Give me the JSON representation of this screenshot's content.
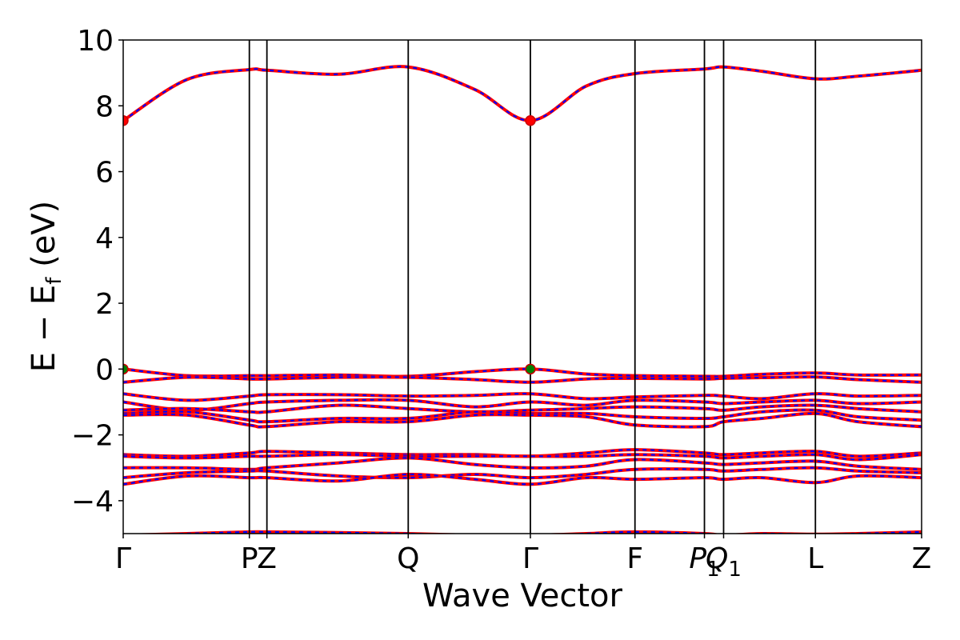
{
  "chart_data": {
    "type": "line",
    "xlabel": "Wave Vector",
    "ylabel": "E − E",
    "ylabel_sub": "f",
    "ylabel_unit": "(eV)",
    "ylim": [
      -5,
      10
    ],
    "yticks": [
      -4,
      -2,
      0,
      2,
      4,
      6,
      8,
      10
    ],
    "ytick_labels": [
      "−4",
      "−2",
      "0",
      "2",
      "4",
      "6",
      "8",
      "10"
    ],
    "xlim": [
      0,
      100
    ],
    "high_symmetry_points": [
      {
        "x": 0,
        "label": "Γ",
        "sub": ""
      },
      {
        "x": 15.8,
        "label": "P",
        "sub": ""
      },
      {
        "x": 18.0,
        "label": "Z",
        "sub": ""
      },
      {
        "x": 35.7,
        "label": "Q",
        "sub": ""
      },
      {
        "x": 51.0,
        "label": "Γ",
        "sub": ""
      },
      {
        "x": 64.1,
        "label": "F",
        "sub": ""
      },
      {
        "x": 72.8,
        "label": "P",
        "sub": "1"
      },
      {
        "x": 75.2,
        "label": "Q",
        "sub": "1"
      },
      {
        "x": 86.7,
        "label": "L",
        "sub": ""
      },
      {
        "x": 100,
        "label": "Z",
        "sub": ""
      }
    ],
    "style": {
      "band_color": "#ff0000",
      "overlay_color": "#0000ff",
      "marker_cbm": "#ff0000",
      "marker_vbm": "#008000",
      "vline_color": "#000000"
    },
    "markers": [
      {
        "x": 0,
        "y": 7.55,
        "kind": "cbm"
      },
      {
        "x": 51.0,
        "y": 7.55,
        "kind": "cbm"
      },
      {
        "x": 0,
        "y": 0.0,
        "kind": "vbm"
      },
      {
        "x": 51.0,
        "y": 0.0,
        "kind": "vbm"
      }
    ],
    "series": [
      {
        "x": [
          0,
          8,
          15.8,
          18,
          27,
          35.7,
          44,
          51,
          58,
          64.1,
          72.8,
          75.2,
          80,
          86.7,
          92,
          100
        ],
        "y": [
          7.55,
          8.8,
          9.1,
          9.08,
          8.96,
          9.18,
          8.5,
          7.55,
          8.6,
          8.98,
          9.12,
          9.18,
          9.05,
          8.82,
          8.9,
          9.08
        ]
      },
      {
        "x": [
          0,
          8,
          15.8,
          18,
          27,
          35.7,
          44,
          51,
          58,
          64.1,
          72.8,
          75.2,
          80,
          86.7,
          92,
          100
        ],
        "y": [
          0.0,
          -0.2,
          -0.2,
          -0.2,
          -0.18,
          -0.22,
          -0.08,
          0.0,
          -0.15,
          -0.2,
          -0.22,
          -0.22,
          -0.16,
          -0.12,
          -0.18,
          -0.18
        ]
      },
      {
        "x": [
          0,
          8,
          15.8,
          18,
          27,
          35.7,
          44,
          51,
          58,
          64.1,
          72.8,
          75.2,
          80,
          86.7,
          92,
          100
        ],
        "y": [
          -0.4,
          -0.25,
          -0.3,
          -0.3,
          -0.25,
          -0.25,
          -0.32,
          -0.4,
          -0.3,
          -0.28,
          -0.3,
          -0.28,
          -0.26,
          -0.24,
          -0.32,
          -0.4
        ]
      },
      {
        "x": [
          0,
          8,
          15.8,
          18,
          27,
          35.7,
          44,
          51,
          58,
          64.1,
          72.8,
          75.2,
          80,
          86.7,
          92,
          100
        ],
        "y": [
          -0.75,
          -0.95,
          -0.82,
          -0.78,
          -0.78,
          -0.82,
          -0.8,
          -0.75,
          -0.9,
          -0.85,
          -0.8,
          -0.82,
          -0.9,
          -0.75,
          -0.82,
          -0.8
        ]
      },
      {
        "x": [
          0,
          8,
          15.8,
          18,
          27,
          35.7,
          44,
          51,
          58,
          64.1,
          72.8,
          75.2,
          80,
          86.7,
          92,
          100
        ],
        "y": [
          -1.0,
          -1.25,
          -1.05,
          -1.0,
          -0.95,
          -0.95,
          -1.15,
          -1.0,
          -1.1,
          -0.95,
          -1.0,
          -1.05,
          -1.0,
          -0.95,
          -1.05,
          -1.0
        ]
      },
      {
        "x": [
          0,
          8,
          15.8,
          18,
          27,
          35.7,
          44,
          51,
          58,
          64.1,
          72.8,
          75.2,
          80,
          86.7,
          92,
          100
        ],
        "y": [
          -1.25,
          -1.2,
          -1.3,
          -1.3,
          -1.1,
          -1.2,
          -1.3,
          -1.25,
          -1.2,
          -1.15,
          -1.2,
          -1.25,
          -1.15,
          -1.1,
          -1.2,
          -1.3
        ]
      },
      {
        "x": [
          0,
          8,
          15.8,
          18,
          27,
          35.7,
          44,
          51,
          58,
          64.1,
          72.8,
          75.2,
          80,
          86.7,
          92,
          100
        ],
        "y": [
          -1.35,
          -1.3,
          -1.55,
          -1.6,
          -1.5,
          -1.5,
          -1.3,
          -1.35,
          -1.35,
          -1.45,
          -1.5,
          -1.45,
          -1.3,
          -1.25,
          -1.45,
          -1.55
        ]
      },
      {
        "x": [
          0,
          8,
          15.8,
          18,
          27,
          35.7,
          44,
          51,
          58,
          64.1,
          72.8,
          75.2,
          80,
          86.7,
          92,
          100
        ],
        "y": [
          -1.4,
          -1.4,
          -1.7,
          -1.75,
          -1.6,
          -1.6,
          -1.4,
          -1.4,
          -1.45,
          -1.7,
          -1.75,
          -1.6,
          -1.5,
          -1.35,
          -1.6,
          -1.75
        ]
      },
      {
        "x": [
          0,
          8,
          15.8,
          18,
          27,
          35.7,
          44,
          51,
          58,
          64.1,
          72.8,
          75.2,
          80,
          86.7,
          92,
          100
        ],
        "y": [
          -2.6,
          -2.65,
          -2.55,
          -2.5,
          -2.55,
          -2.6,
          -2.6,
          -2.65,
          -2.55,
          -2.45,
          -2.55,
          -2.6,
          -2.55,
          -2.5,
          -2.65,
          -2.55
        ]
      },
      {
        "x": [
          0,
          8,
          15.8,
          18,
          27,
          35.7,
          44,
          51,
          58,
          64.1,
          72.8,
          75.2,
          80,
          86.7,
          92,
          100
        ],
        "y": [
          -2.65,
          -2.7,
          -2.65,
          -2.65,
          -2.6,
          -2.65,
          -2.65,
          -2.65,
          -2.65,
          -2.6,
          -2.65,
          -2.7,
          -2.65,
          -2.6,
          -2.75,
          -2.6
        ]
      },
      {
        "x": [
          0,
          8,
          15.8,
          18,
          27,
          35.7,
          44,
          51,
          58,
          64.1,
          72.8,
          75.2,
          80,
          86.7,
          92,
          100
        ],
        "y": [
          -3.0,
          -3.0,
          -3.05,
          -3.0,
          -2.85,
          -2.7,
          -2.9,
          -3.0,
          -2.95,
          -2.75,
          -2.85,
          -2.9,
          -2.85,
          -2.8,
          -2.95,
          -3.05
        ]
      },
      {
        "x": [
          0,
          8,
          15.8,
          18,
          27,
          35.7,
          44,
          51,
          58,
          64.1,
          72.8,
          75.2,
          80,
          86.7,
          92,
          100
        ],
        "y": [
          -3.3,
          -3.15,
          -3.1,
          -3.1,
          -3.25,
          -3.3,
          -3.2,
          -3.3,
          -3.2,
          -3.05,
          -3.05,
          -3.1,
          -3.05,
          -3.0,
          -3.1,
          -3.15
        ]
      },
      {
        "x": [
          0,
          8,
          15.8,
          18,
          27,
          35.7,
          44,
          51,
          58,
          64.1,
          72.8,
          75.2,
          80,
          86.7,
          92,
          100
        ],
        "y": [
          -3.5,
          -3.25,
          -3.3,
          -3.3,
          -3.4,
          -3.2,
          -3.35,
          -3.5,
          -3.3,
          -3.35,
          -3.3,
          -3.35,
          -3.3,
          -3.45,
          -3.25,
          -3.3
        ]
      },
      {
        "x": [
          0,
          8,
          15.8,
          18,
          27,
          35.7,
          44,
          51,
          58,
          64.1,
          72.8,
          75.2,
          80,
          86.7,
          92,
          100
        ],
        "y": [
          -5.05,
          -5.0,
          -4.95,
          -4.95,
          -4.97,
          -5.0,
          -5.05,
          -5.05,
          -5.0,
          -4.95,
          -5.0,
          -5.05,
          -5.0,
          -5.02,
          -5.0,
          -4.95
        ]
      }
    ]
  }
}
